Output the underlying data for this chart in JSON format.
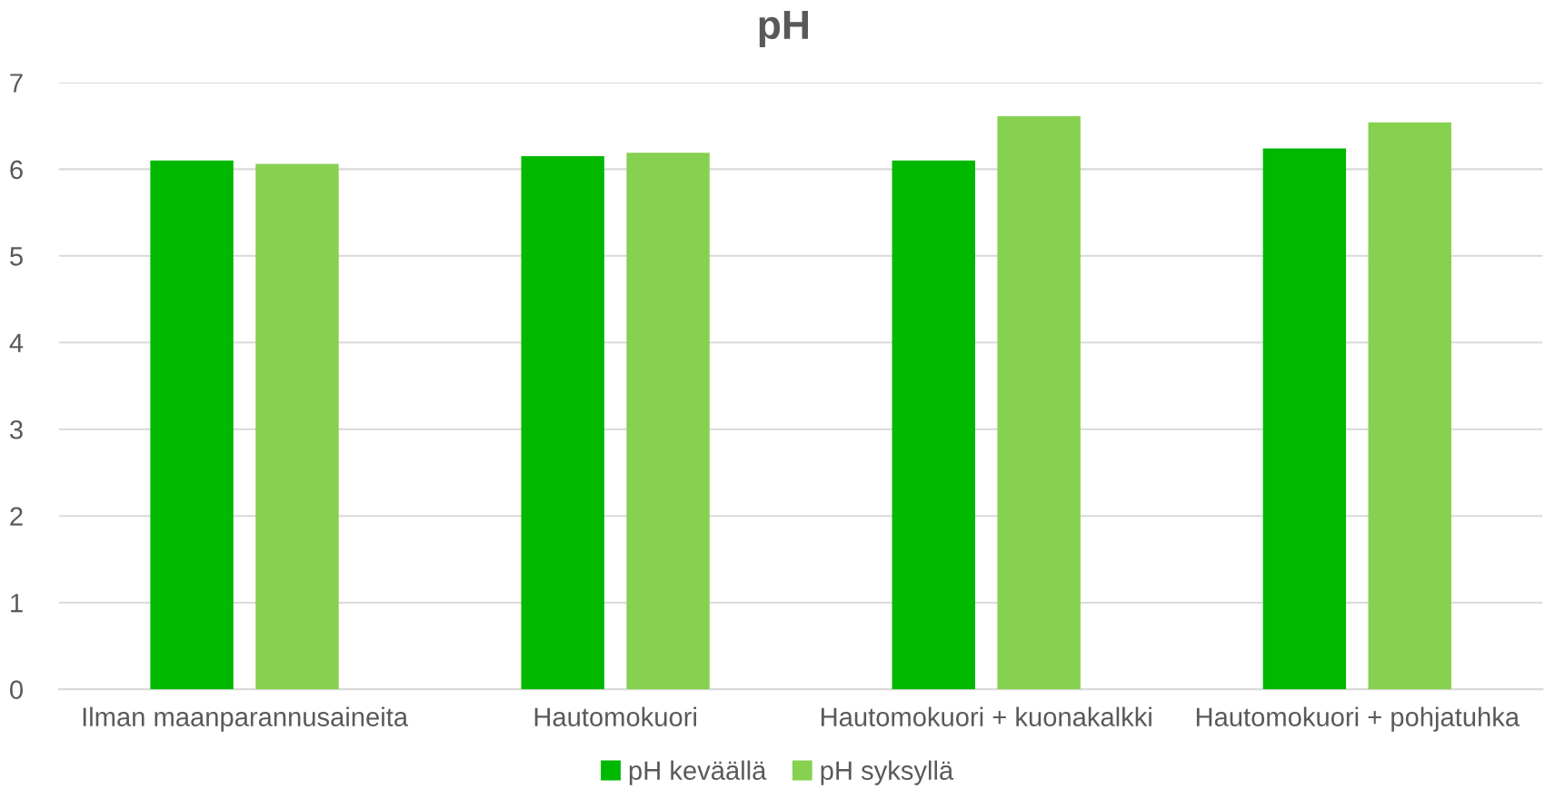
{
  "chart_data": {
    "type": "bar",
    "title": "pH",
    "categories": [
      "Ilman maanparannusaineita",
      "Hautomokuori",
      "Hautomokuori + kuonakalkki",
      "Hautomokuori + pohjatuhka"
    ],
    "series": [
      {
        "name": "pH keväällä",
        "color": "#00b800",
        "values": [
          6.1,
          6.15,
          6.1,
          6.24
        ]
      },
      {
        "name": "pH syksyllä",
        "color": "#86d150",
        "values": [
          6.06,
          6.19,
          6.61,
          6.54
        ]
      }
    ],
    "ylim": [
      0,
      7
    ],
    "yticks": [
      0,
      1,
      2,
      3,
      4,
      5,
      6,
      7
    ],
    "grid": "y",
    "legend": "bottom"
  }
}
